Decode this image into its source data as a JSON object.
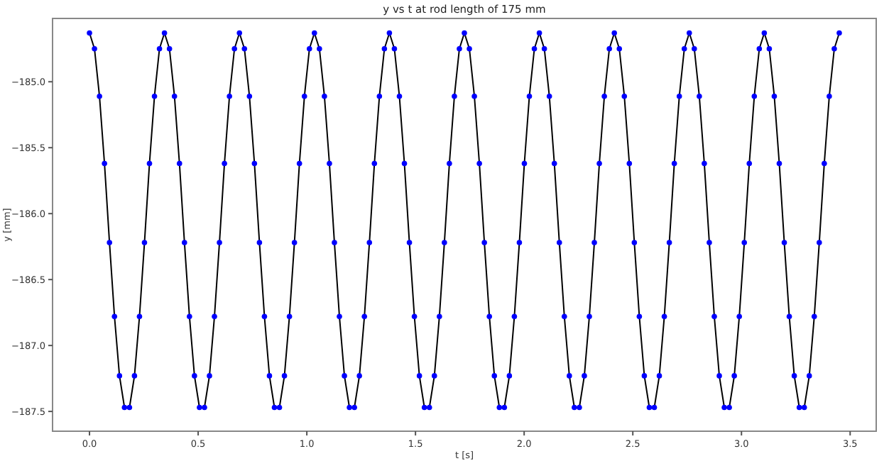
{
  "chart_data": {
    "type": "line",
    "title": "y vs t at rod length of 175 mm",
    "xlabel": "t [s]",
    "ylabel": "y [mm]",
    "xlim": [
      -0.17,
      3.62
    ],
    "ylim": [
      -187.65,
      -184.52
    ],
    "xticks": [
      {
        "value": 0,
        "label": "0.0"
      },
      0.5,
      {
        "value": 1,
        "label": "1.0"
      },
      1.5,
      {
        "value": 2,
        "label": "2.0"
      },
      2.5,
      {
        "value": 3,
        "label": "3.0"
      },
      3.5
    ],
    "yticks": [
      {
        "value": -185,
        "label": "−185.0"
      },
      {
        "value": -185.5,
        "label": "−185.5"
      },
      {
        "value": -186,
        "label": "−186.0"
      },
      {
        "value": -186.5,
        "label": "−186.5"
      },
      {
        "value": -187,
        "label": "−187.0"
      },
      {
        "value": -187.5,
        "label": "−187.5"
      }
    ],
    "grid": false,
    "x": [
      0,
      0.023,
      0.046,
      0.069,
      0.092,
      0.115,
      0.138,
      0.161,
      0.184,
      0.207,
      0.23,
      0.253,
      0.276,
      0.299,
      0.322,
      0.345,
      0.368,
      0.391,
      0.414,
      0.437,
      0.46,
      0.483,
      0.506,
      0.529,
      0.552,
      0.575,
      0.598,
      0.621,
      0.644,
      0.667,
      0.69,
      0.713,
      0.736,
      0.759,
      0.782,
      0.805,
      0.828,
      0.851,
      0.874,
      0.897,
      0.92,
      0.943,
      0.966,
      0.989,
      1.012,
      1.035,
      1.058,
      1.081,
      1.104,
      1.127,
      1.15,
      1.173,
      1.196,
      1.219,
      1.242,
      1.265,
      1.288,
      1.311,
      1.334,
      1.357,
      1.38,
      1.403,
      1.426,
      1.449,
      1.472,
      1.495,
      1.518,
      1.541,
      1.564,
      1.587,
      1.61,
      1.633,
      1.656,
      1.679,
      1.702,
      1.725,
      1.748,
      1.771,
      1.794,
      1.817,
      1.84,
      1.863,
      1.886,
      1.909,
      1.932,
      1.955,
      1.978,
      2.001,
      2.024,
      2.047,
      2.07,
      2.093,
      2.116,
      2.139,
      2.162,
      2.185,
      2.208,
      2.231,
      2.254,
      2.277,
      2.3,
      2.323,
      2.346,
      2.369,
      2.392,
      2.415,
      2.438,
      2.461,
      2.484,
      2.507,
      2.53,
      2.553,
      2.576,
      2.599,
      2.622,
      2.645,
      2.668,
      2.691,
      2.714,
      2.737,
      2.76,
      2.783,
      2.806,
      2.829,
      2.852,
      2.875,
      2.898,
      2.921,
      2.944,
      2.967,
      2.99,
      3.013,
      3.036,
      3.059,
      3.082,
      3.105,
      3.128,
      3.151,
      3.174,
      3.197,
      3.22,
      3.243,
      3.266,
      3.289,
      3.312,
      3.335,
      3.358,
      3.381,
      3.404,
      3.427,
      3.45
    ],
    "series": [
      {
        "color": "#000000",
        "marker": "none",
        "line_style": "solid",
        "values": [
          -184.63,
          -184.75,
          -185.11,
          -185.62,
          -186.22,
          -186.78,
          -187.23,
          -187.47,
          -187.47,
          -187.23,
          -186.78,
          -186.22,
          -185.62,
          -185.11,
          -184.75,
          -184.63,
          -184.75,
          -185.11,
          -185.62,
          -186.22,
          -186.78,
          -187.23,
          -187.47,
          -187.47,
          -187.23,
          -186.78,
          -186.22,
          -185.62,
          -185.11,
          -184.75,
          -184.63,
          -184.75,
          -185.11,
          -185.62,
          -186.22,
          -186.78,
          -187.23,
          -187.47,
          -187.47,
          -187.23,
          -186.78,
          -186.22,
          -185.62,
          -185.11,
          -184.75,
          -184.63,
          -184.75,
          -185.11,
          -185.62,
          -186.22,
          -186.78,
          -187.23,
          -187.47,
          -187.47,
          -187.23,
          -186.78,
          -186.22,
          -185.62,
          -185.11,
          -184.75,
          -184.63,
          -184.75,
          -185.11,
          -185.62,
          -186.22,
          -186.78,
          -187.23,
          -187.47,
          -187.47,
          -187.23,
          -186.78,
          -186.22,
          -185.62,
          -185.11,
          -184.75,
          -184.63,
          -184.75,
          -185.11,
          -185.62,
          -186.22,
          -186.78,
          -187.23,
          -187.47,
          -187.47,
          -187.23,
          -186.78,
          -186.22,
          -185.62,
          -185.11,
          -184.75,
          -184.63,
          -184.75,
          -185.11,
          -185.62,
          -186.22,
          -186.78,
          -187.23,
          -187.47,
          -187.47,
          -187.23,
          -186.78,
          -186.22,
          -185.62,
          -185.11,
          -184.75,
          -184.63,
          -184.75,
          -185.11,
          -185.62,
          -186.22,
          -186.78,
          -187.23,
          -187.47,
          -187.47,
          -187.23,
          -186.78,
          -186.22,
          -185.62,
          -185.11,
          -184.75,
          -184.63,
          -184.75,
          -185.11,
          -185.62,
          -186.22,
          -186.78,
          -187.23,
          -187.47,
          -187.47,
          -187.23,
          -186.78,
          -186.22,
          -185.62,
          -185.11,
          -184.75,
          -184.63,
          -184.75,
          -185.11,
          -185.62,
          -186.22,
          -186.78,
          -187.23,
          -187.47,
          -187.47,
          -187.23,
          -186.78,
          -186.22,
          -185.62,
          -185.11,
          -184.75,
          -184.63
        ]
      },
      {
        "type": "scatter",
        "color": "#0000ff",
        "marker": "circle",
        "values": [
          -184.63,
          -184.75,
          -185.11,
          -185.62,
          -186.22,
          -186.78,
          -187.23,
          -187.47,
          -187.47,
          -187.23,
          -186.78,
          -186.22,
          -185.62,
          -185.11,
          -184.75,
          -184.63,
          -184.75,
          -185.11,
          -185.62,
          -186.22,
          -186.78,
          -187.23,
          -187.47,
          -187.47,
          -187.23,
          -186.78,
          -186.22,
          -185.62,
          -185.11,
          -184.75,
          -184.63,
          -184.75,
          -185.11,
          -185.62,
          -186.22,
          -186.78,
          -187.23,
          -187.47,
          -187.47,
          -187.23,
          -186.78,
          -186.22,
          -185.62,
          -185.11,
          -184.75,
          -184.63,
          -184.75,
          -185.11,
          -185.62,
          -186.22,
          -186.78,
          -187.23,
          -187.47,
          -187.47,
          -187.23,
          -186.78,
          -186.22,
          -185.62,
          -185.11,
          -184.75,
          -184.63,
          -184.75,
          -185.11,
          -185.62,
          -186.22,
          -186.78,
          -187.23,
          -187.47,
          -187.47,
          -187.23,
          -186.78,
          -186.22,
          -185.62,
          -185.11,
          -184.75,
          -184.63,
          -184.75,
          -185.11,
          -185.62,
          -186.22,
          -186.78,
          -187.23,
          -187.47,
          -187.47,
          -187.23,
          -186.78,
          -186.22,
          -185.62,
          -185.11,
          -184.75,
          -184.63,
          -184.75,
          -185.11,
          -185.62,
          -186.22,
          -186.78,
          -187.23,
          -187.47,
          -187.47,
          -187.23,
          -186.78,
          -186.22,
          -185.62,
          -185.11,
          -184.75,
          -184.63,
          -184.75,
          -185.11,
          -185.62,
          -186.22,
          -186.78,
          -187.23,
          -187.47,
          -187.47,
          -187.23,
          -186.78,
          -186.22,
          -185.62,
          -185.11,
          -184.75,
          -184.63,
          -184.75,
          -185.11,
          -185.62,
          -186.22,
          -186.78,
          -187.23,
          -187.47,
          -187.47,
          -187.23,
          -186.78,
          -186.22,
          -185.62,
          -185.11,
          -184.75,
          -184.63,
          -184.75,
          -185.11,
          -185.62,
          -186.22,
          -186.78,
          -187.23,
          -187.47,
          -187.47,
          -187.23,
          -186.78,
          -186.22,
          -185.62,
          -185.11,
          -184.75,
          -184.63
        ]
      }
    ]
  }
}
